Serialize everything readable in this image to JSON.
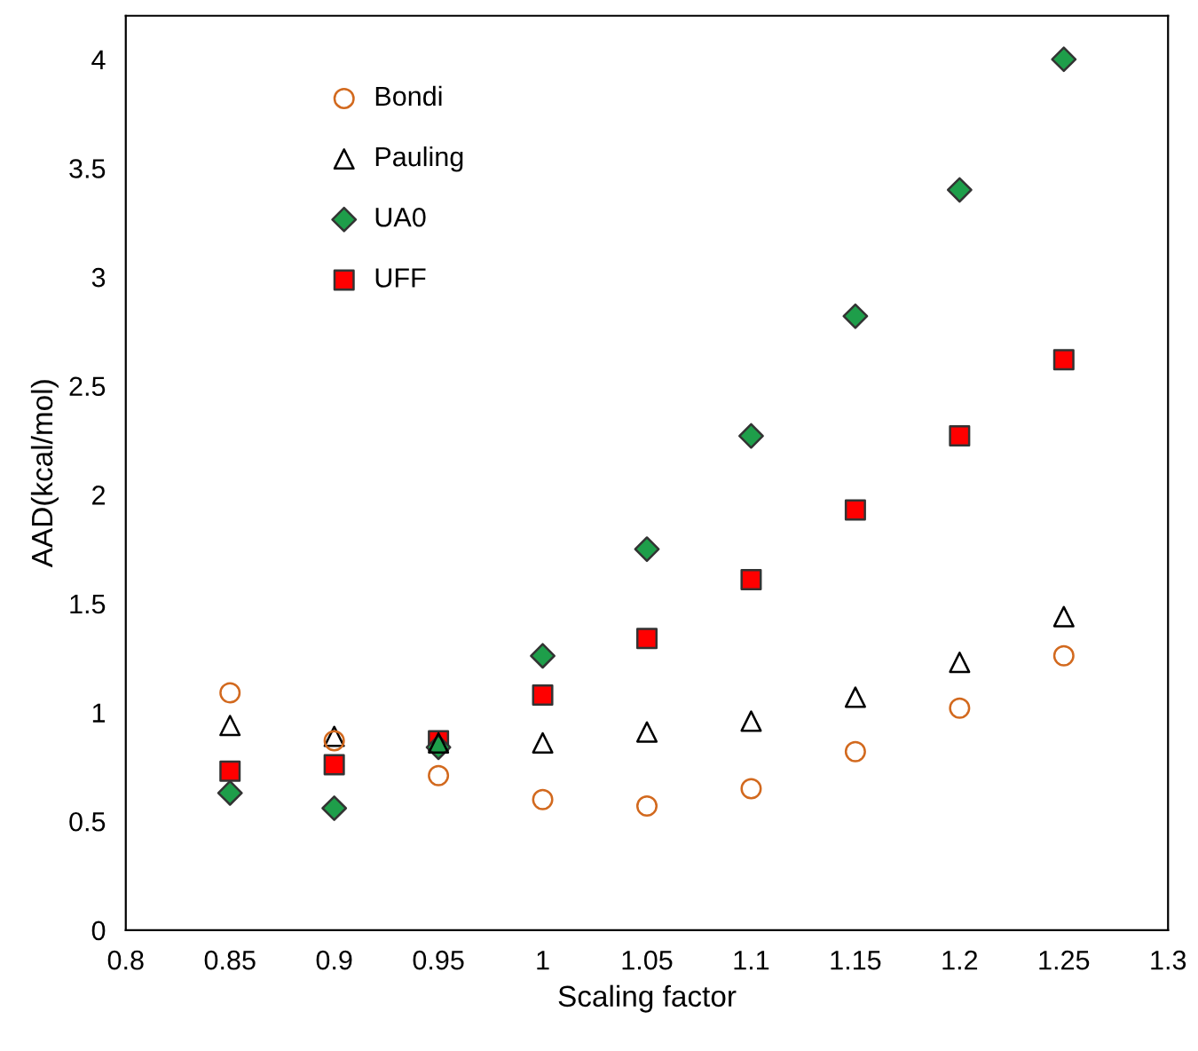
{
  "chart_data": {
    "type": "scatter",
    "xlabel": "Scaling factor",
    "ylabel": "AAD(kcal/mol)",
    "x": [
      0.85,
      0.9,
      0.95,
      1.0,
      1.05,
      1.1,
      1.15,
      1.2,
      1.25
    ],
    "series": [
      {
        "name": "Bondi",
        "color": "#d2691e",
        "marker": "circle",
        "values": [
          1.09,
          0.87,
          0.71,
          0.6,
          0.57,
          0.65,
          0.82,
          1.02,
          1.26
        ]
      },
      {
        "name": "Pauling",
        "color": "#000000",
        "marker": "triangle",
        "values": [
          0.94,
          0.89,
          0.86,
          0.86,
          0.91,
          0.96,
          1.07,
          1.23,
          1.44
        ]
      },
      {
        "name": "UA0",
        "color": "#1e9e4a",
        "marker": "diamond",
        "values": [
          0.63,
          0.56,
          0.84,
          1.26,
          1.75,
          2.27,
          2.82,
          3.4,
          4.0
        ]
      },
      {
        "name": "UFF",
        "color": "#ff0000",
        "marker": "square",
        "values": [
          0.73,
          0.76,
          0.87,
          1.08,
          1.34,
          1.61,
          1.93,
          2.27,
          2.62
        ]
      }
    ],
    "xlim": [
      0.8,
      1.3
    ],
    "xticks": [
      0.8,
      0.85,
      0.9,
      0.95,
      1,
      1.05,
      1.1,
      1.15,
      1.2,
      1.25,
      1.3
    ],
    "ylim": [
      0,
      4.2
    ],
    "yticks": [
      0,
      0.5,
      1,
      1.5,
      2,
      2.5,
      3,
      3.5,
      4
    ],
    "grid": false,
    "legend": "top left"
  }
}
